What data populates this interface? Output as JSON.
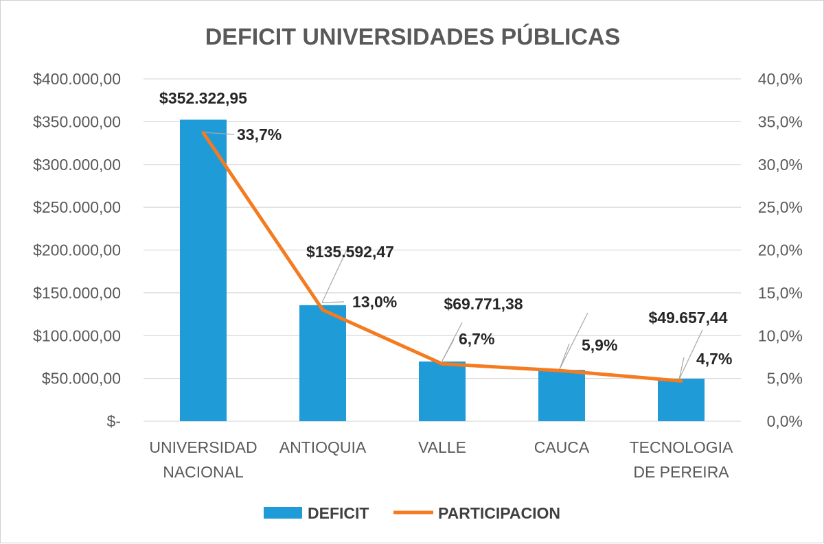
{
  "chart_data": {
    "type": "bar",
    "title": "DEFICIT UNIVERSIDADES PÚBLICAS",
    "categories": [
      [
        "UNIVERSIDAD",
        "NACIONAL"
      ],
      [
        "ANTIOQUIA"
      ],
      [
        "VALLE"
      ],
      [
        "CAUCA"
      ],
      [
        "TECNOLOGIA",
        "DE PEREIRA"
      ]
    ],
    "series": [
      {
        "name": "DEFICIT",
        "kind": "bar",
        "axis": "left",
        "color": "#1f9bd7",
        "values": [
          352322.95,
          135592.47,
          69771.38,
          60000,
          49657.44
        ],
        "labels": [
          "$352.322,95",
          "$135.592,47",
          "$69.771,38",
          "",
          "$49.657,44"
        ]
      },
      {
        "name": "PARTICIPACION",
        "kind": "line",
        "axis": "right",
        "color": "#f47b20",
        "values": [
          33.7,
          13.0,
          6.7,
          5.9,
          4.7
        ],
        "labels": [
          "33,7%",
          "13,0%",
          "6,7%",
          "5,9%",
          "4,7%"
        ]
      }
    ],
    "y_left": {
      "min": 0,
      "max": 400000,
      "step": 50000,
      "tick_labels": [
        "$-",
        "$50.000,00",
        "$100.000,00",
        "$150.000,00",
        "$200.000,00",
        "$250.000,00",
        "$300.000,00",
        "$350.000,00",
        "$400.000,00"
      ]
    },
    "y_right": {
      "min": 0,
      "max": 40,
      "step": 5,
      "tick_labels": [
        "0,0%",
        "5,0%",
        "10,0%",
        "15,0%",
        "20,0%",
        "25,0%",
        "30,0%",
        "35,0%",
        "40,0%"
      ]
    },
    "grid": true,
    "legend": "bottom",
    "xlabel": "",
    "ylabel": ""
  }
}
